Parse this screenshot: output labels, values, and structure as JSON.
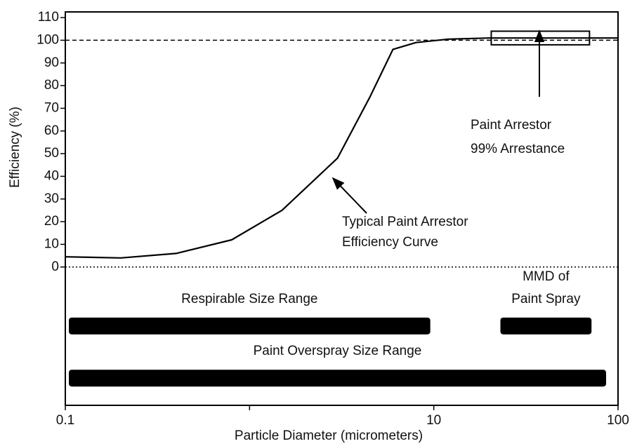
{
  "chart_data": {
    "type": "line",
    "xlabel": "Particle Diameter (micrometers)",
    "ylabel": "Efficiency (%)",
    "xscale": "log",
    "xlim": [
      0.1,
      100
    ],
    "xticks": [
      0.1,
      10,
      100
    ],
    "xticks_unlabeled": [
      1
    ],
    "ylim": [
      -61,
      112.5
    ],
    "yticks": [
      0,
      10,
      20,
      30,
      40,
      50,
      60,
      70,
      80,
      90,
      100,
      110
    ],
    "series": [
      {
        "color": "#000000",
        "x": [
          0.1,
          0.2,
          0.4,
          0.8,
          1.5,
          3,
          4.5,
          6,
          8,
          12,
          20,
          100
        ],
        "values": [
          4.5,
          4,
          6,
          12,
          25,
          48,
          75,
          96,
          99,
          100.5,
          101,
          101
        ]
      }
    ],
    "hlines": [
      {
        "value": 100,
        "style": "dashed"
      },
      {
        "value": 0,
        "style": "dotted"
      }
    ],
    "highlight_box": {
      "x": [
        20.5,
        70
      ],
      "y": [
        98,
        104
      ]
    },
    "ranges": [
      {
        "label": [
          "Respirable Size Range"
        ],
        "start": 0.1,
        "end": 10,
        "y": -26
      },
      {
        "label": [
          "MMD of",
          "Paint Spray"
        ],
        "start": 22,
        "end": 75,
        "y": -26
      },
      {
        "label": [
          "Paint Overspray Size Range"
        ],
        "start": 0.1,
        "end": 90,
        "y": -49
      }
    ],
    "annotations": [
      {
        "lines": [
          "Paint Arrestor",
          "99% Arrestance"
        ]
      },
      {
        "lines": [
          "Typical Paint Arrestor",
          "Efficiency Curve"
        ]
      }
    ]
  }
}
